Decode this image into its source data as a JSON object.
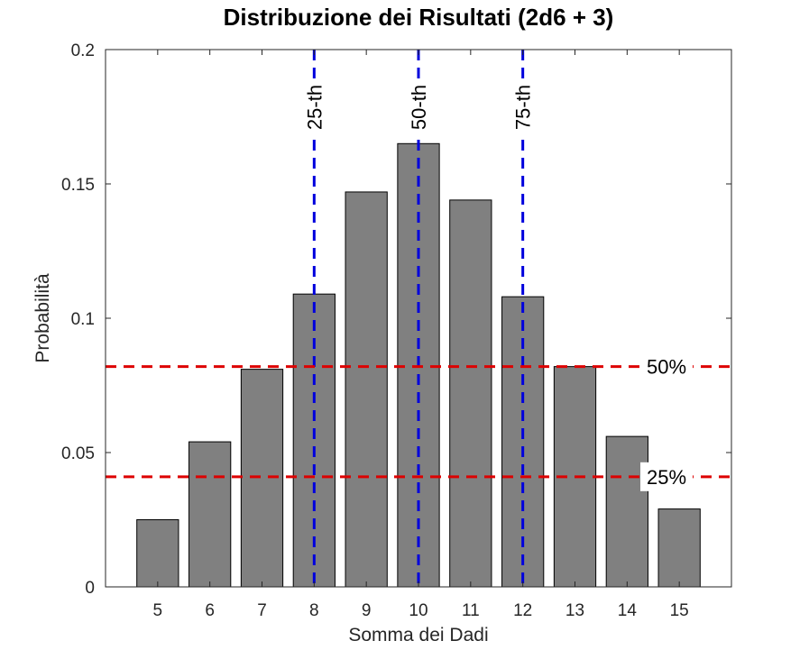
{
  "chart_data": {
    "type": "bar",
    "title": "Distribuzione dei Risultati (2d6 + 3)",
    "xlabel": "Somma dei Dadi",
    "ylabel": "Probabilità",
    "categories": [
      "5",
      "6",
      "7",
      "8",
      "9",
      "10",
      "11",
      "12",
      "13",
      "14",
      "15"
    ],
    "x": [
      5,
      6,
      7,
      8,
      9,
      10,
      11,
      12,
      13,
      14,
      15
    ],
    "values": [
      0.025,
      0.054,
      0.081,
      0.109,
      0.147,
      0.165,
      0.144,
      0.108,
      0.082,
      0.056,
      0.029
    ],
    "xlim": [
      4,
      16
    ],
    "ylim": [
      0,
      0.2
    ],
    "yticks": [
      0,
      0.05,
      0.1,
      0.15,
      0.2
    ],
    "ytick_labels": [
      "0",
      "0.05",
      "0.1",
      "0.15",
      "0.2"
    ],
    "grid": false,
    "bar_color": "#808080",
    "percentile_lines": [
      {
        "x": 8,
        "label": "25-th",
        "color": "#0000dd"
      },
      {
        "x": 10,
        "label": "50-th",
        "color": "#0000dd"
      },
      {
        "x": 12,
        "label": "75-th",
        "color": "#0000dd"
      }
    ],
    "threshold_lines": [
      {
        "y": 0.082,
        "label": "50%",
        "color": "#dd0000"
      },
      {
        "y": 0.041,
        "label": "25%",
        "color": "#dd0000"
      }
    ]
  }
}
